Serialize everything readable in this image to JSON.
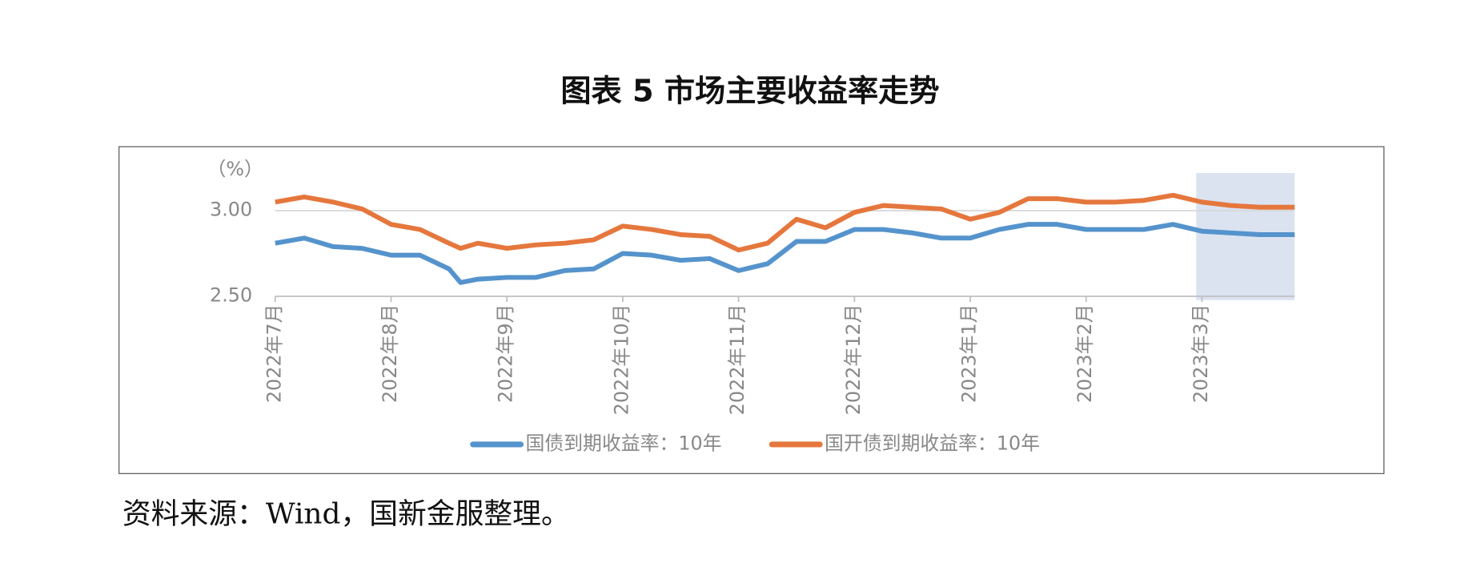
{
  "chart_data": {
    "type": "line",
    "title": "图表 5  市场主要收益率走势",
    "y_label": "（%）",
    "source": "资料来源：Wind，国新金服整理。",
    "x": [
      0,
      0.25,
      0.5,
      0.75,
      1,
      1.25,
      1.5,
      1.6,
      1.75,
      2,
      2.25,
      2.5,
      2.75,
      3,
      3.25,
      3.5,
      3.75,
      4,
      4.25,
      4.5,
      4.75,
      5,
      5.25,
      5.5,
      5.75,
      6,
      6.25,
      6.5,
      6.75,
      7,
      7.25,
      7.5,
      7.75,
      8,
      8.25,
      8.5,
      8.8
    ],
    "series": [
      {
        "name": "国债到期收益率：10年",
        "color": "#5593cc",
        "values": [
          2.81,
          2.84,
          2.79,
          2.78,
          2.74,
          2.74,
          2.66,
          2.58,
          2.6,
          2.61,
          2.61,
          2.65,
          2.66,
          2.75,
          2.74,
          2.71,
          2.72,
          2.65,
          2.69,
          2.82,
          2.82,
          2.89,
          2.89,
          2.87,
          2.84,
          2.84,
          2.89,
          2.92,
          2.92,
          2.89,
          2.89,
          2.89,
          2.92,
          2.88,
          2.87,
          2.86,
          2.86
        ]
      },
      {
        "name": "国开债到期收益率：10年",
        "color": "#e5773d",
        "values": [
          3.05,
          3.08,
          3.05,
          3.01,
          2.92,
          2.89,
          2.81,
          2.78,
          2.81,
          2.78,
          2.8,
          2.81,
          2.83,
          2.91,
          2.89,
          2.86,
          2.85,
          2.77,
          2.81,
          2.95,
          2.9,
          2.99,
          3.03,
          3.02,
          3.01,
          2.95,
          2.99,
          3.07,
          3.07,
          3.05,
          3.05,
          3.06,
          3.09,
          3.05,
          3.03,
          3.02,
          3.02
        ]
      }
    ],
    "xlim": [
      0,
      8.8
    ],
    "xticks": [
      {
        "value": 0,
        "label": "2022年7月"
      },
      {
        "value": 1,
        "label": "2022年8月"
      },
      {
        "value": 2,
        "label": "2022年9月"
      },
      {
        "value": 3,
        "label": "2022年10月"
      },
      {
        "value": 4,
        "label": "2022年11月"
      },
      {
        "value": 5,
        "label": "2022年12月"
      },
      {
        "value": 6,
        "label": "2023年1月"
      },
      {
        "value": 7,
        "label": "2023年2月"
      },
      {
        "value": 8,
        "label": "2023年3月"
      }
    ],
    "ylim": [
      2.5,
      3.22
    ],
    "yticks": [
      {
        "value": 2.5,
        "label": "2.50"
      },
      {
        "value": 3,
        "label": "3.00"
      }
    ],
    "shaded_range": [
      7.95,
      8.8
    ],
    "shade_color": "#dbe3f1",
    "grid": true,
    "legend": "bottom"
  }
}
